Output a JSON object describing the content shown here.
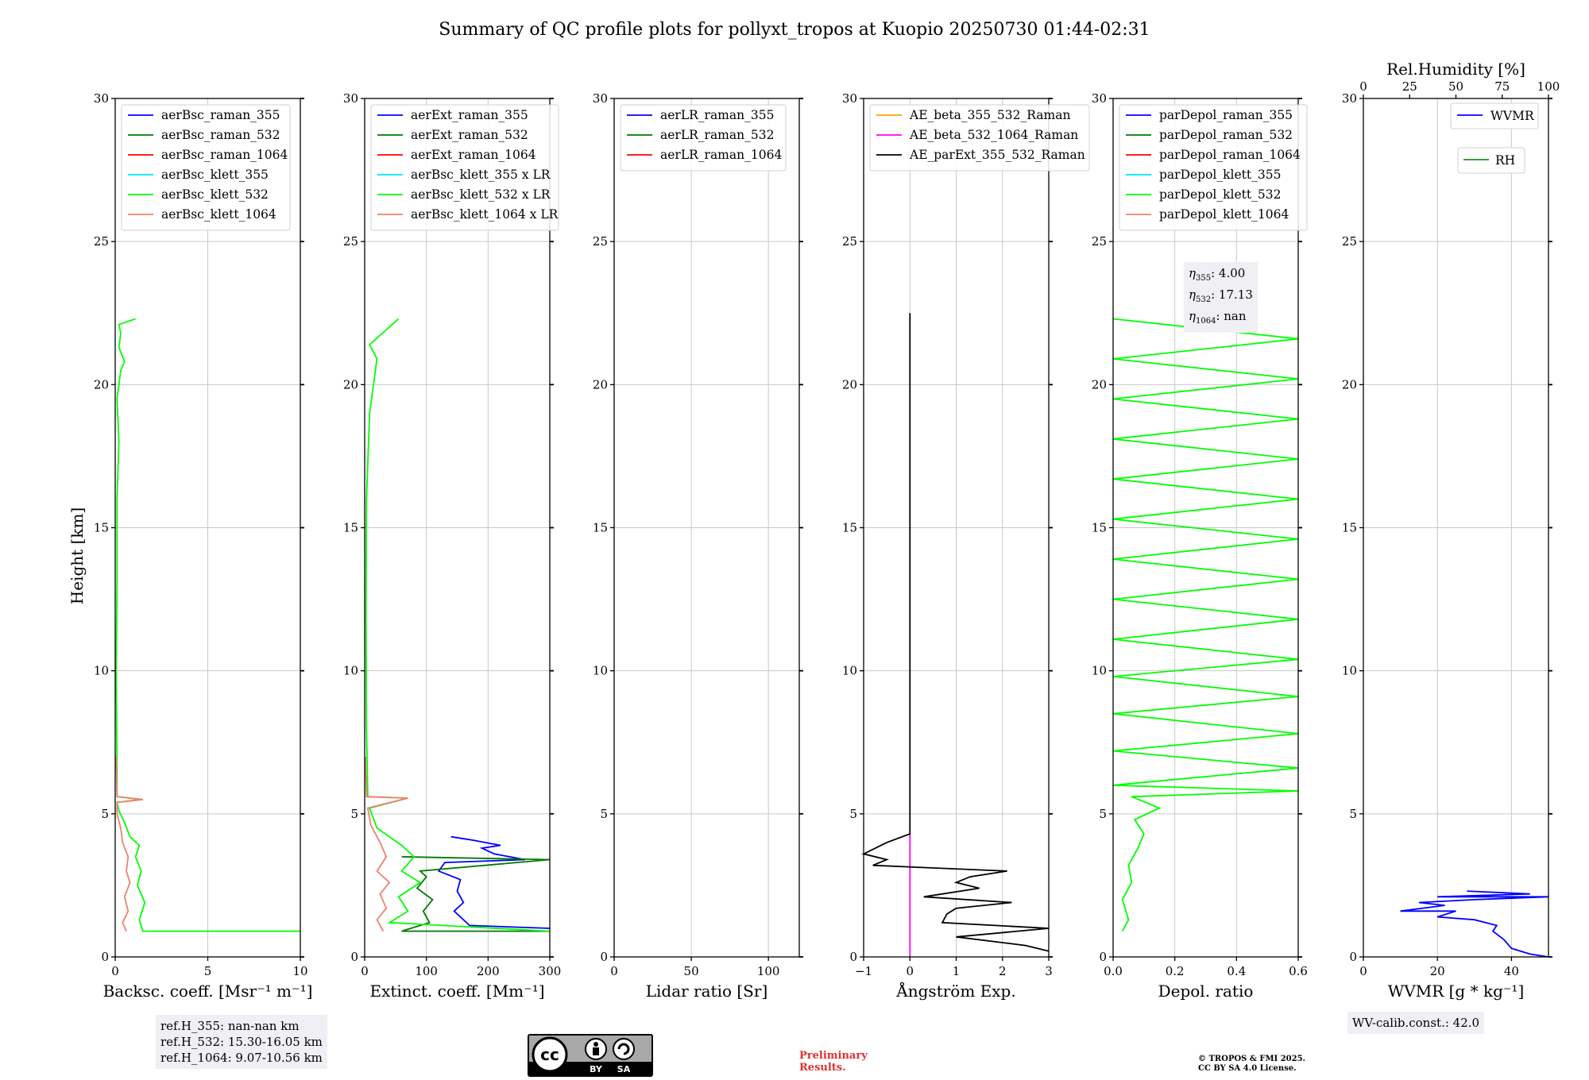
{
  "suptitle": "Summary of QC profile plots for pollyxt_tropos at Kuopio 20250730 01:44-02:31",
  "ylabel": "Height [km]",
  "colors": {
    "blue": "#0000ff",
    "darkgreen": "#007a00",
    "red": "#ff0000",
    "cyan": "#00e5ff",
    "lime": "#00ff00",
    "salmon": "#f08070",
    "orange": "#ffa500",
    "magenta": "#ff00ff",
    "black": "#000000",
    "green": "#228b22"
  },
  "panels": [
    {
      "xlabel": "Backsc. coeff. [Msr⁻¹ m⁻¹]",
      "xticks": [
        "0",
        "5",
        "10"
      ],
      "legend": [
        "aerBsc_raman_355",
        "aerBsc_raman_532",
        "aerBsc_raman_1064",
        "aerBsc_klett_355",
        "aerBsc_klett_532",
        "aerBsc_klett_1064"
      ]
    },
    {
      "xlabel": "Extinct. coeff. [Mm⁻¹]",
      "xticks": [
        "0",
        "100",
        "200",
        "300"
      ],
      "legend": [
        "aerExt_raman_355",
        "aerExt_raman_532",
        "aerExt_raman_1064",
        "aerBsc_klett_355 x LR",
        "aerBsc_klett_532 x LR",
        "aerBsc_klett_1064 x LR"
      ]
    },
    {
      "xlabel": "Lidar ratio [Sr]",
      "xticks": [
        "0",
        "50",
        "100"
      ],
      "legend": [
        "aerLR_raman_355",
        "aerLR_raman_532",
        "aerLR_raman_1064"
      ]
    },
    {
      "xlabel": "Ångström Exp.",
      "xticks": [
        "−1",
        "0",
        "1",
        "2",
        "3"
      ],
      "legend": [
        "AE_beta_355_532_Raman",
        "AE_beta_532_1064_Raman",
        "AE_parExt_355_532_Raman"
      ]
    },
    {
      "xlabel": "Depol. ratio",
      "xticks": [
        "0.0",
        "0.2",
        "0.4",
        "0.6"
      ],
      "legend": [
        "parDepol_raman_355",
        "parDepol_raman_532",
        "parDepol_raman_1064",
        "parDepol_klett_355",
        "parDepol_klett_532",
        "parDepol_klett_1064"
      ]
    },
    {
      "xlabel": "WVMR [g * kg⁻¹]",
      "xticks": [
        "0",
        "20",
        "40"
      ],
      "top_label": "Rel.Humidity [%]",
      "top_ticks": [
        "0",
        "25",
        "50",
        "75",
        "100"
      ],
      "legend": [
        "WVMR",
        "RH"
      ]
    }
  ],
  "yticks": [
    "0",
    "5",
    "10",
    "15",
    "20",
    "25",
    "30"
  ],
  "ref_box": [
    "ref.H_355: nan-nan km",
    "ref.H_532: 15.30-16.05 km",
    "ref.H_1064: 9.07-10.56 km"
  ],
  "eta_box": {
    "l355": ": 4.00",
    "l532": ": 17.13",
    "l1064": ": nan"
  },
  "wv_calib": "WV-calib.const.: 42.0",
  "cc_license": {
    "cc": "cc",
    "by": "BY",
    "sa": "SA"
  },
  "preliminary": [
    "Preliminary",
    "Results."
  ],
  "copyright": [
    "© TROPOS & FMI 2025.",
    "CC BY SA 4.0 License."
  ],
  "chart_data": [
    {
      "type": "line",
      "title": "",
      "ylabel": "Height [km]",
      "xlabel": "Backsc. coeff. [Msr⁻¹ m⁻¹]",
      "xlim": [
        0,
        10
      ],
      "ylim": [
        0,
        30
      ],
      "series": [
        {
          "name": "aerBsc_klett_532",
          "color": "lime",
          "points": [
            [
              10,
              0.9
            ],
            [
              1.5,
              0.9
            ],
            [
              1.3,
              1.3
            ],
            [
              1.6,
              1.9
            ],
            [
              1.2,
              2.5
            ],
            [
              1.4,
              3.0
            ],
            [
              1.1,
              3.5
            ],
            [
              1.3,
              3.9
            ],
            [
              0.8,
              4.2
            ],
            [
              0.5,
              4.7
            ],
            [
              0.2,
              5.1
            ],
            [
              0.1,
              5.4
            ],
            [
              1.4,
              5.5
            ],
            [
              0.1,
              5.6
            ],
            [
              0.1,
              6.5
            ],
            [
              0.05,
              10
            ],
            [
              0.1,
              13
            ],
            [
              0.1,
              16
            ],
            [
              0.2,
              18
            ],
            [
              0.1,
              19.5
            ],
            [
              0.3,
              20.5
            ],
            [
              0.5,
              20.8
            ],
            [
              0.2,
              21.3
            ],
            [
              0.3,
              21.8
            ],
            [
              0.2,
              22.1
            ],
            [
              1.1,
              22.3
            ]
          ]
        },
        {
          "name": "aerBsc_klett_1064",
          "color": "salmon",
          "points": [
            [
              0.6,
              0.9
            ],
            [
              0.4,
              1.2
            ],
            [
              0.7,
              1.6
            ],
            [
              0.5,
              2.1
            ],
            [
              0.8,
              2.6
            ],
            [
              0.6,
              3.0
            ],
            [
              0.7,
              3.5
            ],
            [
              0.4,
              4.0
            ],
            [
              0.3,
              4.5
            ],
            [
              0.1,
              5.0
            ],
            [
              0.1,
              5.4
            ],
            [
              1.5,
              5.5
            ],
            [
              0.1,
              5.6
            ],
            [
              0.05,
              7
            ]
          ]
        }
      ]
    },
    {
      "type": "line",
      "title": "",
      "ylabel": "Height [km]",
      "xlabel": "Extinct. coeff. [Mm⁻¹]",
      "xlim": [
        0,
        300
      ],
      "ylim": [
        0,
        30
      ],
      "series": [
        {
          "name": "aerExt_raman_355",
          "color": "blue",
          "points": [
            [
              300,
              1.0
            ],
            [
              170,
              1.1
            ],
            [
              145,
              1.6
            ],
            [
              160,
              1.9
            ],
            [
              150,
              2.3
            ],
            [
              155,
              2.7
            ],
            [
              120,
              3.0
            ],
            [
              130,
              3.3
            ],
            [
              260,
              3.4
            ],
            [
              210,
              3.6
            ],
            [
              190,
              3.8
            ],
            [
              220,
              3.9
            ],
            [
              170,
              4.1
            ],
            [
              140,
              4.2
            ]
          ]
        },
        {
          "name": "aerExt_raman_532",
          "color": "darkgreen",
          "points": [
            [
              300,
              0.9
            ],
            [
              60,
              0.9
            ],
            [
              105,
              1.2
            ],
            [
              95,
              1.6
            ],
            [
              110,
              2.0
            ],
            [
              85,
              2.4
            ],
            [
              100,
              2.8
            ],
            [
              90,
              3.0
            ],
            [
              300,
              3.4
            ],
            [
              60,
              3.5
            ]
          ]
        },
        {
          "name": "aerBsc_klett_532 x LR",
          "color": "lime",
          "points": [
            [
              300,
              0.9
            ],
            [
              40,
              1.2
            ],
            [
              70,
              1.6
            ],
            [
              55,
              2.1
            ],
            [
              90,
              2.6
            ],
            [
              60,
              3.0
            ],
            [
              80,
              3.5
            ],
            [
              60,
              3.9
            ],
            [
              20,
              4.5
            ],
            [
              8,
              5.2
            ],
            [
              70,
              5.55
            ],
            [
              5,
              5.6
            ],
            [
              3,
              8
            ],
            [
              2,
              12
            ],
            [
              3,
              16
            ],
            [
              8,
              19
            ],
            [
              20,
              20.9
            ],
            [
              8,
              21.4
            ],
            [
              55,
              22.3
            ]
          ]
        },
        {
          "name": "aerBsc_klett_1064 x LR",
          "color": "salmon",
          "points": [
            [
              30,
              0.9
            ],
            [
              20,
              1.3
            ],
            [
              35,
              1.7
            ],
            [
              25,
              2.2
            ],
            [
              40,
              2.6
            ],
            [
              20,
              3.0
            ],
            [
              35,
              3.5
            ],
            [
              25,
              4.0
            ],
            [
              10,
              4.6
            ],
            [
              5,
              5.2
            ],
            [
              70,
              5.55
            ],
            [
              3,
              5.6
            ],
            [
              1,
              7
            ]
          ]
        }
      ]
    },
    {
      "type": "line",
      "title": "",
      "ylabel": "Height [km]",
      "xlabel": "Lidar ratio [Sr]",
      "xlim": [
        0,
        120
      ],
      "ylim": [
        0,
        30
      ],
      "series": []
    },
    {
      "type": "line",
      "title": "",
      "ylabel": "Height [km]",
      "xlabel": "Ångström Exp.",
      "xlim": [
        -1,
        3
      ],
      "ylim": [
        0,
        30
      ],
      "series": [
        {
          "name": "AE_beta_532_1064_Raman",
          "color": "magenta",
          "points": [
            [
              0,
              0
            ],
            [
              0,
              4.3
            ]
          ]
        },
        {
          "name": "AE_parExt_355_532_Raman",
          "color": "black",
          "points": [
            [
              3,
              0.2
            ],
            [
              2.5,
              0.4
            ],
            [
              1.0,
              0.7
            ],
            [
              3,
              1.0
            ],
            [
              0.7,
              1.2
            ],
            [
              0.8,
              1.5
            ],
            [
              1.0,
              1.7
            ],
            [
              2.2,
              1.9
            ],
            [
              0.3,
              2.1
            ],
            [
              1.5,
              2.4
            ],
            [
              1.0,
              2.6
            ],
            [
              1.3,
              2.8
            ],
            [
              2.1,
              3.0
            ],
            [
              -0.8,
              3.2
            ],
            [
              -0.5,
              3.4
            ],
            [
              -1,
              3.6
            ],
            [
              -0.5,
              4.0
            ],
            [
              0,
              4.3
            ],
            [
              0,
              22.5
            ]
          ]
        }
      ]
    },
    {
      "type": "line",
      "title": "",
      "ylabel": "Height [km]",
      "xlabel": "Depol. ratio",
      "xlim": [
        0,
        0.6
      ],
      "ylim": [
        0,
        30
      ],
      "series": [
        {
          "name": "parDepol_klett_532",
          "color": "lime",
          "points": [
            [
              0.03,
              0.9
            ],
            [
              0.05,
              1.3
            ],
            [
              0.03,
              2.0
            ],
            [
              0.06,
              2.6
            ],
            [
              0.05,
              3.2
            ],
            [
              0.08,
              3.8
            ],
            [
              0.1,
              4.3
            ],
            [
              0.07,
              4.8
            ],
            [
              0.15,
              5.2
            ],
            [
              0.06,
              5.6
            ],
            [
              0.6,
              5.8
            ],
            [
              0.0,
              6.0
            ],
            [
              0.6,
              6.6
            ],
            [
              0.0,
              7.2
            ],
            [
              0.6,
              7.8
            ],
            [
              0.0,
              8.5
            ],
            [
              0.6,
              9.1
            ],
            [
              0.0,
              9.8
            ],
            [
              0.6,
              10.4
            ],
            [
              0.0,
              11.1
            ],
            [
              0.6,
              11.8
            ],
            [
              0.0,
              12.5
            ],
            [
              0.6,
              13.2
            ],
            [
              0.0,
              13.9
            ],
            [
              0.6,
              14.6
            ],
            [
              0.0,
              15.3
            ],
            [
              0.6,
              16.0
            ],
            [
              0.0,
              16.7
            ],
            [
              0.6,
              17.4
            ],
            [
              0.0,
              18.1
            ],
            [
              0.6,
              18.8
            ],
            [
              0.0,
              19.5
            ],
            [
              0.6,
              20.2
            ],
            [
              0.0,
              20.9
            ],
            [
              0.6,
              21.6
            ],
            [
              0.0,
              22.3
            ]
          ]
        }
      ]
    },
    {
      "type": "line",
      "title": "",
      "ylabel": "Height [km]",
      "xlabel": "WVMR [g * kg⁻¹]",
      "xlim": [
        0,
        50
      ],
      "ylim": [
        0,
        30
      ],
      "top_axis": {
        "label": "Rel.Humidity [%]",
        "lim": [
          0,
          100
        ]
      },
      "series": [
        {
          "name": "WVMR",
          "color": "blue",
          "points": [
            [
              50,
              0
            ],
            [
              45,
              0.1
            ],
            [
              40,
              0.3
            ],
            [
              38,
              0.6
            ],
            [
              35,
              0.9
            ],
            [
              36,
              1.1
            ],
            [
              30,
              1.3
            ],
            [
              20,
              1.4
            ],
            [
              25,
              1.6
            ],
            [
              10,
              1.6
            ],
            [
              22,
              1.8
            ],
            [
              15,
              1.9
            ],
            [
              30,
              2.0
            ],
            [
              50,
              2.1
            ],
            [
              20,
              2.1
            ],
            [
              45,
              2.2
            ],
            [
              28,
              2.3
            ]
          ]
        }
      ]
    }
  ]
}
